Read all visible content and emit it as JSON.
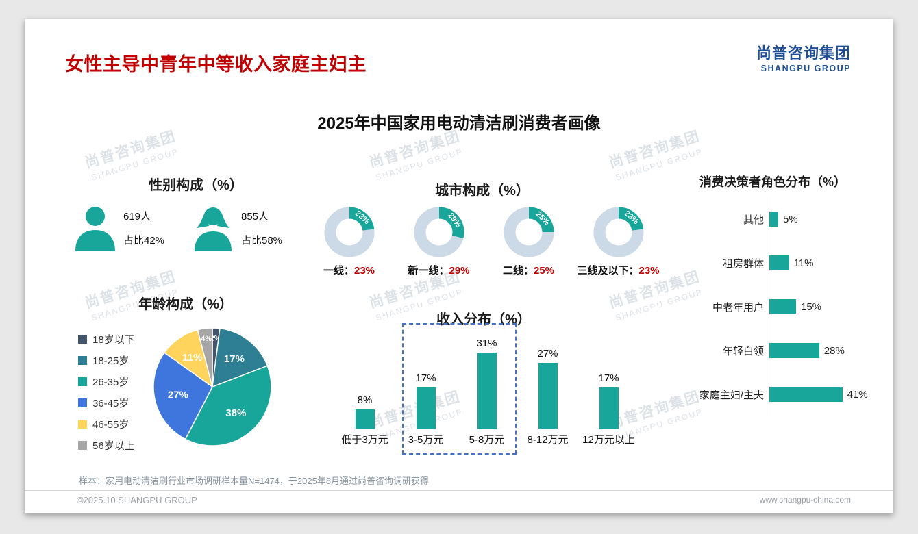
{
  "page": {
    "header_title": "女性主导中青年中等收入家庭主妇主",
    "logo_cn": "尚普咨询集团",
    "logo_en": "SHANGPU GROUP",
    "main_title": "2025年中国家用电动清洁刷消费者画像",
    "footnote": "样本：家用电动清洁刷行业市场调研样本量N=1474，于2025年8月通过尚普咨询调研获得",
    "footer_left": "©2025.10 SHANGPU GROUP",
    "footer_right": "www.shangpu-china.com",
    "watermark_cn": "尚普咨询集团",
    "watermark_en": "SHANGPU GROUP"
  },
  "colors": {
    "teal": "#18a69a",
    "donut_rest": "#ccd9e6",
    "accent_red": "#c00000",
    "logo_blue": "#1f4e95",
    "highlight_border": "#4472c4"
  },
  "chart_data": [
    {
      "id": "gender",
      "type": "pictogram",
      "title": "性别构成（%）",
      "items": [
        {
          "icon": "male-icon",
          "count": "619人",
          "share": "占比42%"
        },
        {
          "icon": "female-icon",
          "count": "855人",
          "share": "占比58%"
        }
      ]
    },
    {
      "id": "city",
      "type": "donut",
      "title": "城市构成（%）",
      "unit": "%",
      "items": [
        {
          "label": "一线",
          "value": 23
        },
        {
          "label": "新一线",
          "value": 29
        },
        {
          "label": "二线",
          "value": 25
        },
        {
          "label": "三线及以下",
          "value": 23
        }
      ]
    },
    {
      "id": "roles",
      "type": "bar",
      "orientation": "horizontal",
      "title": "消费决策者角色分布（%）",
      "categories": [
        "其他",
        "租房群体",
        "中老年用户",
        "年轻白领",
        "家庭主妇/主夫"
      ],
      "values": [
        5,
        11,
        15,
        28,
        41
      ],
      "xlim": [
        0,
        45
      ]
    },
    {
      "id": "age",
      "type": "pie",
      "title": "年龄构成（%）",
      "categories": [
        "18岁以下",
        "18-25岁",
        "26-35岁",
        "36-45岁",
        "46-55岁",
        "56岁以上"
      ],
      "values": [
        2,
        17,
        38,
        27,
        11,
        4
      ],
      "colors": [
        "#44546a",
        "#2e7f93",
        "#18a69a",
        "#3e76dd",
        "#ffd45c",
        "#a6a6a6"
      ],
      "legend_position": "left"
    },
    {
      "id": "income",
      "type": "bar",
      "orientation": "vertical",
      "title": "收入分布（%）",
      "categories": [
        "低于3万元",
        "3-5万元",
        "5-8万元",
        "8-12万元",
        "12万元以上"
      ],
      "values": [
        8,
        17,
        31,
        27,
        17
      ],
      "ylim": [
        0,
        35
      ],
      "highlight_categories": [
        "3-5万元",
        "5-8万元"
      ]
    }
  ]
}
